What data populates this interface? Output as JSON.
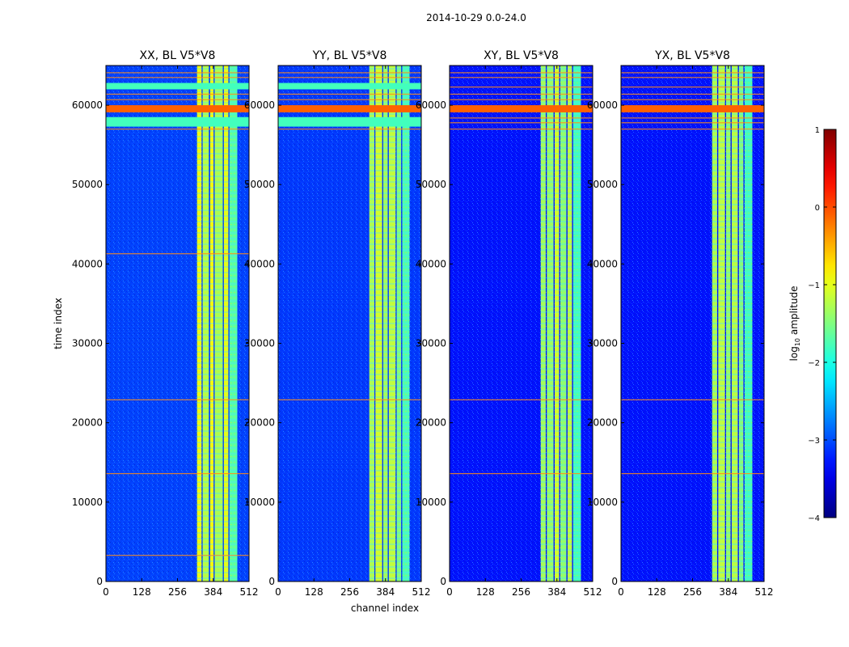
{
  "chart_data": {
    "type": "heatmap",
    "suptitle": "2014-10-29 0.0-24.0",
    "xlabel": "channel index",
    "ylabel": "time index",
    "xlim": [
      0,
      512
    ],
    "ylim": [
      0,
      65000
    ],
    "x_ticks": [
      "0",
      "128",
      "256",
      "384",
      "512"
    ],
    "x_tick_values": [
      0,
      128,
      256,
      384,
      512
    ],
    "y_ticks": [
      "0",
      "10000",
      "20000",
      "30000",
      "40000",
      "50000",
      "60000"
    ],
    "y_tick_values": [
      0,
      10000,
      20000,
      30000,
      40000,
      50000,
      60000
    ],
    "colormap": "jet",
    "colorbar": {
      "label_prefix": "log",
      "label_sub": "10",
      "label_suffix": " amplitude",
      "range": [
        -4,
        1
      ],
      "ticks": [
        "1",
        "0",
        "−1",
        "−2",
        "−3",
        "−4"
      ],
      "tick_values": [
        1,
        0,
        -1,
        -2,
        -3,
        -4
      ]
    },
    "panels": [
      {
        "title": "XX, BL V5*V8",
        "background_log_amp": -3.05,
        "bands": [
          {
            "channel_range": [
              326,
              342
            ],
            "log_amp": -0.95
          },
          {
            "channel_range": [
              346,
              368
            ],
            "log_amp": -1.25
          },
          {
            "channel_range": [
              373,
              385
            ],
            "log_amp": -0.9
          },
          {
            "channel_range": [
              389,
              418
            ],
            "log_amp": -1.3
          },
          {
            "channel_range": [
              422,
              438
            ],
            "log_amp": -1.0
          },
          {
            "channel_range": [
              442,
              470
            ],
            "log_amp": -1.7
          }
        ],
        "strong_rows": [
          {
            "time_range": [
              59100,
              60000
            ],
            "log_amp": -0.1
          },
          {
            "time_range": [
              57300,
              58500
            ],
            "log_amp": -1.8
          },
          {
            "time_range": [
              62000,
              62800
            ],
            "log_amp": -1.8
          }
        ],
        "rfi_rows": [
          22900,
          13600,
          3300,
          41300,
          60700,
          61400,
          63500,
          64100,
          57000
        ]
      },
      {
        "title": "YY, BL V5*V8",
        "background_log_amp": -3.1,
        "bands": [
          {
            "channel_range": [
              326,
              344
            ],
            "log_amp": -1.3
          },
          {
            "channel_range": [
              348,
              372
            ],
            "log_amp": -1.1
          },
          {
            "channel_range": [
              376,
              392
            ],
            "log_amp": -1.35
          },
          {
            "channel_range": [
              396,
              420
            ],
            "log_amp": -1.2
          },
          {
            "channel_range": [
              424,
              440
            ],
            "log_amp": -1.5
          },
          {
            "channel_range": [
              444,
              470
            ],
            "log_amp": -1.75
          }
        ],
        "strong_rows": [
          {
            "time_range": [
              59100,
              60000
            ],
            "log_amp": -0.1
          },
          {
            "time_range": [
              57300,
              58500
            ],
            "log_amp": -1.8
          },
          {
            "time_range": [
              62000,
              62800
            ],
            "log_amp": -1.8
          }
        ],
        "rfi_rows": [
          22900,
          60700,
          61400,
          63500,
          64100,
          57000
        ]
      },
      {
        "title": "XY, BL V5*V8",
        "background_log_amp": -3.3,
        "bands": [
          {
            "channel_range": [
              326,
              344
            ],
            "log_amp": -1.35
          },
          {
            "channel_range": [
              348,
              372
            ],
            "log_amp": -1.4
          },
          {
            "channel_range": [
              376,
              392
            ],
            "log_amp": -1.1
          },
          {
            "channel_range": [
              396,
              418
            ],
            "log_amp": -1.45
          },
          {
            "channel_range": [
              422,
              438
            ],
            "log_amp": -1.2
          },
          {
            "channel_range": [
              442,
              470
            ],
            "log_amp": -1.8
          }
        ],
        "strong_rows": [
          {
            "time_range": [
              59100,
              60000
            ],
            "log_amp": -0.1
          }
        ],
        "rfi_rows": [
          22900,
          13600,
          60700,
          61400,
          62300,
          63500,
          64100,
          57000,
          57800,
          58400
        ]
      },
      {
        "title": "YX, BL V5*V8",
        "background_log_amp": -3.3,
        "bands": [
          {
            "channel_range": [
              326,
              344
            ],
            "log_amp": -1.3
          },
          {
            "channel_range": [
              348,
              372
            ],
            "log_amp": -1.2
          },
          {
            "channel_range": [
              376,
              392
            ],
            "log_amp": -1.4
          },
          {
            "channel_range": [
              396,
              418
            ],
            "log_amp": -1.25
          },
          {
            "channel_range": [
              422,
              438
            ],
            "log_amp": -1.5
          },
          {
            "channel_range": [
              442,
              470
            ],
            "log_amp": -1.8
          }
        ],
        "strong_rows": [
          {
            "time_range": [
              59100,
              60000
            ],
            "log_amp": -0.1
          }
        ],
        "rfi_rows": [
          22900,
          13600,
          60700,
          61400,
          62300,
          63500,
          64100,
          57000,
          57800,
          58400
        ]
      }
    ]
  }
}
